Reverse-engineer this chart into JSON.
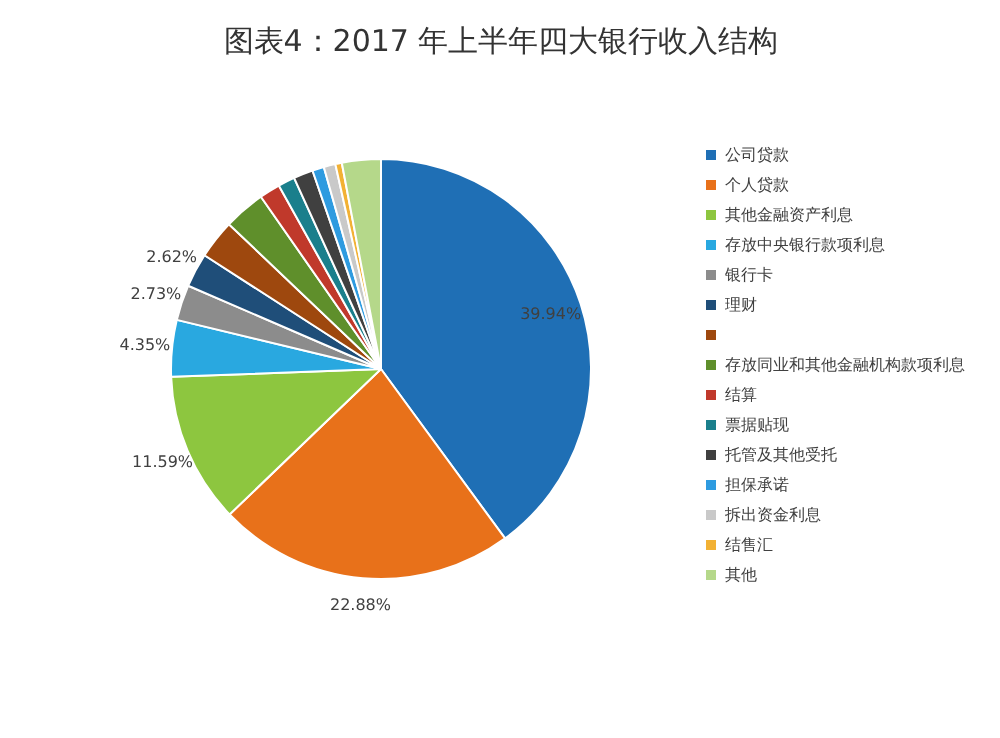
{
  "chart_data": {
    "type": "pie",
    "title": "图表4：2017 年上半年四大银行收入结构",
    "categories": [
      "公司贷款",
      "个人贷款",
      "其他金融资产利息",
      "存放中央银行款项利息",
      "银行卡",
      "理财",
      null,
      "存放同业和其他金融机构款项利息",
      "结算",
      "票据贴现",
      "托管及其他受托",
      "担保承诺",
      "拆出资金利息",
      "结售汇",
      "其他"
    ],
    "values": [
      39.94,
      22.88,
      11.59,
      4.35,
      2.73,
      2.62,
      3.0,
      3.2,
      1.6,
      1.3,
      1.5,
      0.9,
      0.9,
      0.5,
      2.99
    ],
    "colors": [
      "#1f6fb5",
      "#e8711a",
      "#8dc63f",
      "#29a8e0",
      "#8c8c8c",
      "#1f4e79",
      "#9e480e",
      "#5f8f2b",
      "#c0392b",
      "#1a7f8c",
      "#404040",
      "#2e9be0",
      "#c9c9c9",
      "#f2b134",
      "#b5d88a"
    ],
    "value_labels": [
      "39.94%",
      "22.88%",
      "11.59%",
      "4.35%",
      "2.73%",
      "2.62%",
      null,
      null,
      null,
      null,
      null,
      null,
      null,
      null,
      null
    ],
    "legend": "right"
  }
}
